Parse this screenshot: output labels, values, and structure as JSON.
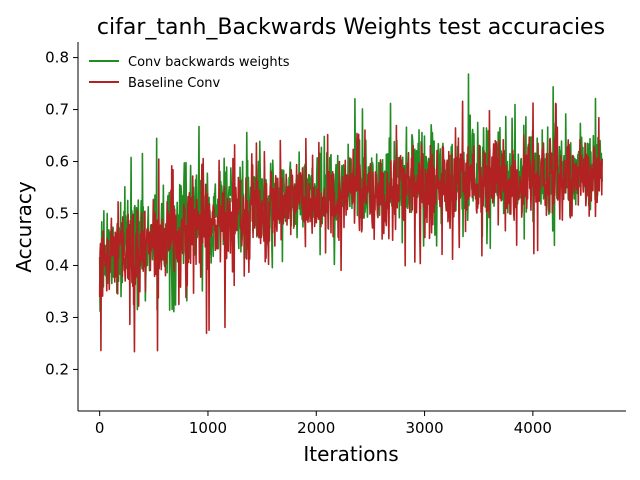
{
  "chart_data": {
    "type": "line",
    "title": "cifar_tanh_Backwards Weights test accuracies",
    "xlabel": "Iterations",
    "ylabel": "Accuracy",
    "xlim": [
      -200,
      4860
    ],
    "ylim": [
      0.12,
      0.83
    ],
    "x_ticks": [
      0,
      1000,
      2000,
      3000,
      4000
    ],
    "y_ticks": [
      0.2,
      0.3,
      0.4,
      0.5,
      0.6,
      0.7,
      0.8
    ],
    "x_ticks_label": [
      "0",
      "1000",
      "2000",
      "3000",
      "4000"
    ],
    "y_ticks_label": [
      "0.2",
      "0.3",
      "0.4",
      "0.5",
      "0.6",
      "0.7",
      "0.8"
    ],
    "grid": false,
    "legend_position": "top-left",
    "series": [
      {
        "name": "Conv backwards weights",
        "color": "#228b22",
        "x_range": [
          0,
          4640
        ],
        "samples": 1200,
        "trend": [
          [
            0,
            0.4
          ],
          [
            300,
            0.44
          ],
          [
            800,
            0.49
          ],
          [
            1500,
            0.52
          ],
          [
            2500,
            0.55
          ],
          [
            3500,
            0.57
          ],
          [
            4640,
            0.58
          ]
        ],
        "envelope_low": [
          [
            0,
            0.25
          ],
          [
            500,
            0.3
          ],
          [
            1500,
            0.36
          ],
          [
            2500,
            0.42
          ],
          [
            4640,
            0.44
          ]
        ],
        "envelope_high": [
          [
            0,
            0.58
          ],
          [
            500,
            0.66
          ],
          [
            1500,
            0.7
          ],
          [
            2500,
            0.74
          ],
          [
            3500,
            0.8
          ],
          [
            4640,
            0.73
          ]
        ]
      },
      {
        "name": "Baseline Conv",
        "color": "#b22222",
        "x_range": [
          0,
          4640
        ],
        "samples": 1200,
        "trend": [
          [
            0,
            0.4
          ],
          [
            300,
            0.43
          ],
          [
            800,
            0.47
          ],
          [
            1500,
            0.51
          ],
          [
            2500,
            0.54
          ],
          [
            3500,
            0.56
          ],
          [
            4640,
            0.57
          ]
        ],
        "envelope_low": [
          [
            0,
            0.16
          ],
          [
            500,
            0.22
          ],
          [
            1500,
            0.3
          ],
          [
            2500,
            0.37
          ],
          [
            4640,
            0.44
          ]
        ],
        "envelope_high": [
          [
            0,
            0.56
          ],
          [
            500,
            0.61
          ],
          [
            1500,
            0.65
          ],
          [
            2500,
            0.68
          ],
          [
            3500,
            0.73
          ],
          [
            4640,
            0.71
          ]
        ]
      }
    ]
  }
}
